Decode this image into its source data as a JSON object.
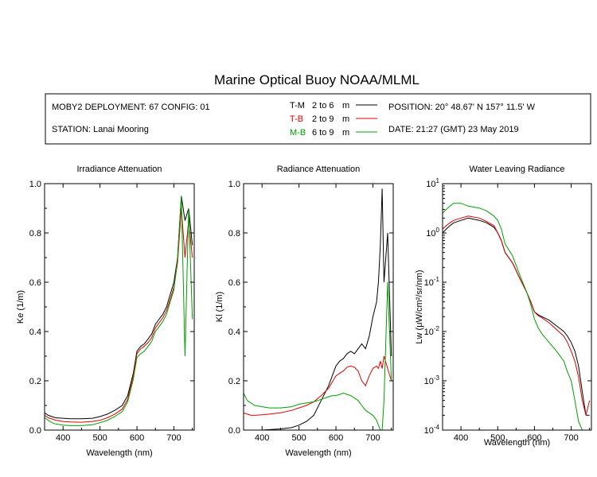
{
  "title": "Marine Optical Buoy NOAA/MLML",
  "info": {
    "deployment": "MOBY2 DEPLOYMENT: 67 CONFIG: 01",
    "station": "STATION: Lanai Mooring",
    "position": "POSITION: 20° 48.67' N   157° 11.5' W",
    "date": "DATE: 21:27 (GMT) 23 May 2019"
  },
  "legend": [
    {
      "pair": "T-M",
      "range": "2 to 6",
      "unit": "m",
      "color": "#000000"
    },
    {
      "pair": "T-B",
      "range": "2 to 9",
      "unit": "m",
      "color": "#dd0000"
    },
    {
      "pair": "M-B",
      "range": "6 to 9",
      "unit": "m",
      "color": "#00a000"
    }
  ],
  "chart_data": [
    {
      "type": "line",
      "title": "Irradiance Attenuation",
      "xlabel": "Wavelength (nm)",
      "ylabel": "Ke  (1/m)",
      "xlim": [
        350,
        755
      ],
      "ylim": [
        0,
        1
      ],
      "xticks": [
        "400",
        "500",
        "600",
        "700"
      ],
      "yticks": [
        "0.0",
        "0.2",
        "0.4",
        "0.6",
        "0.8",
        "1.0"
      ],
      "x": [
        350,
        360,
        370,
        380,
        400,
        420,
        450,
        480,
        500,
        520,
        540,
        560,
        575,
        590,
        600,
        610,
        620,
        630,
        640,
        650,
        660,
        670,
        680,
        690,
        700,
        710,
        720,
        730,
        740,
        750
      ],
      "series": [
        {
          "name": "T-M",
          "color": "#000000",
          "values": [
            0.07,
            0.06,
            0.055,
            0.05,
            0.048,
            0.046,
            0.046,
            0.048,
            0.055,
            0.065,
            0.08,
            0.1,
            0.14,
            0.23,
            0.32,
            0.34,
            0.35,
            0.37,
            0.39,
            0.43,
            0.45,
            0.47,
            0.5,
            0.55,
            0.6,
            0.7,
            0.95,
            0.85,
            0.9,
            0.75
          ]
        },
        {
          "name": "T-B",
          "color": "#dd0000",
          "values": [
            0.06,
            0.05,
            0.045,
            0.04,
            0.035,
            0.033,
            0.032,
            0.035,
            0.04,
            0.05,
            0.065,
            0.085,
            0.125,
            0.22,
            0.31,
            0.33,
            0.34,
            0.355,
            0.375,
            0.415,
            0.435,
            0.455,
            0.485,
            0.53,
            0.58,
            0.68,
            0.9,
            0.7,
            0.85,
            0.7
          ]
        },
        {
          "name": "M-B",
          "color": "#00a000",
          "values": [
            0.05,
            0.04,
            0.03,
            0.025,
            0.02,
            0.018,
            0.018,
            0.022,
            0.03,
            0.04,
            0.055,
            0.075,
            0.115,
            0.205,
            0.295,
            0.31,
            0.32,
            0.34,
            0.36,
            0.4,
            0.42,
            0.44,
            0.47,
            0.52,
            0.57,
            0.7,
            0.95,
            0.3,
            0.9,
            0.45
          ]
        }
      ]
    },
    {
      "type": "line",
      "title": "Radiance Attenuation",
      "xlabel": "Wavelength (nm)",
      "ylabel": "Kl  (1/m)",
      "xlim": [
        350,
        755
      ],
      "ylim": [
        0,
        1
      ],
      "xticks": [
        "400",
        "500",
        "600",
        "700"
      ],
      "yticks": [
        "0.0",
        "0.2",
        "0.4",
        "0.6",
        "0.8",
        "1.0"
      ],
      "x": [
        350,
        360,
        370,
        380,
        400,
        420,
        450,
        480,
        500,
        520,
        540,
        560,
        580,
        590,
        600,
        610,
        620,
        630,
        640,
        650,
        660,
        670,
        680,
        690,
        700,
        710,
        715,
        720,
        725,
        730,
        740,
        750
      ],
      "series": [
        {
          "name": "T-M",
          "color": "#000000",
          "values": [
            0.0,
            0.0,
            0.0,
            0.0,
            0.0,
            0.002,
            0.005,
            0.01,
            0.02,
            0.035,
            0.06,
            0.12,
            0.18,
            0.22,
            0.26,
            0.28,
            0.29,
            0.31,
            0.32,
            0.31,
            0.33,
            0.35,
            0.33,
            0.38,
            0.46,
            0.52,
            0.6,
            0.75,
            0.98,
            0.6,
            0.8,
            0.3
          ]
        },
        {
          "name": "T-B",
          "color": "#dd0000",
          "values": [
            0.07,
            0.065,
            0.06,
            0.06,
            0.062,
            0.065,
            0.07,
            0.08,
            0.09,
            0.1,
            0.115,
            0.14,
            0.17,
            0.195,
            0.22,
            0.23,
            0.24,
            0.255,
            0.26,
            0.255,
            0.24,
            0.2,
            0.18,
            0.22,
            0.25,
            0.26,
            0.25,
            0.28,
            0.25,
            0.3,
            0.25,
            0.2
          ]
        },
        {
          "name": "M-B",
          "color": "#00a000",
          "values": [
            0.15,
            0.12,
            0.11,
            0.1,
            0.095,
            0.09,
            0.09,
            0.095,
            0.105,
            0.11,
            0.115,
            0.125,
            0.135,
            0.14,
            0.14,
            0.145,
            0.15,
            0.145,
            0.14,
            0.13,
            0.12,
            0.1,
            0.08,
            0.07,
            0.06,
            0.04,
            0.02,
            0.0,
            0.0,
            0.12,
            0.6,
            0.2
          ]
        }
      ]
    },
    {
      "type": "line",
      "title": "Water Leaving Radiance",
      "xlabel": "Wavelength (nm)",
      "ylabel": "Lw  (μW/cm²/sr/nm)",
      "xlim": [
        350,
        755
      ],
      "ylim": [
        0.0001,
        10
      ],
      "yscale": "log",
      "xticks": [
        "400",
        "500",
        "600",
        "700"
      ],
      "yticks": [
        "10-4",
        "10-3",
        "10-2",
        "10-1",
        "100",
        "101"
      ],
      "x": [
        350,
        360,
        370,
        380,
        400,
        420,
        450,
        470,
        490,
        500,
        510,
        520,
        540,
        560,
        580,
        590,
        600,
        610,
        620,
        640,
        660,
        680,
        690,
        700,
        710,
        720,
        730,
        740,
        750
      ],
      "series": [
        {
          "name": "T-M",
          "color": "#000000",
          "values": [
            1.0,
            1.2,
            1.4,
            1.6,
            1.8,
            2.0,
            1.8,
            1.6,
            1.3,
            1.0,
            0.7,
            0.4,
            0.25,
            0.12,
            0.06,
            0.04,
            0.025,
            0.022,
            0.02,
            0.017,
            0.013,
            0.01,
            0.008,
            0.006,
            0.004,
            0.002,
            0.0006,
            0.0002,
            0.0002
          ]
        },
        {
          "name": "T-B",
          "color": "#dd0000",
          "values": [
            1.2,
            1.4,
            1.6,
            1.8,
            2.0,
            2.2,
            2.0,
            1.7,
            1.4,
            1.0,
            0.7,
            0.4,
            0.25,
            0.12,
            0.06,
            0.04,
            0.025,
            0.021,
            0.019,
            0.015,
            0.011,
            0.008,
            0.006,
            0.004,
            0.0025,
            0.0012,
            0.0004,
            0.0002,
            0.0004
          ]
        },
        {
          "name": "M-B",
          "color": "#00a000",
          "values": [
            2.5,
            3.0,
            3.5,
            4.0,
            4.0,
            3.5,
            3.2,
            2.8,
            2.2,
            1.8,
            1.2,
            0.6,
            0.35,
            0.14,
            0.06,
            0.035,
            0.018,
            0.012,
            0.009,
            0.006,
            0.004,
            0.0025,
            0.0015,
            0.001,
            0.0004,
            0.00015,
            0.0001,
            0.0001,
            0.0001
          ]
        }
      ]
    }
  ]
}
